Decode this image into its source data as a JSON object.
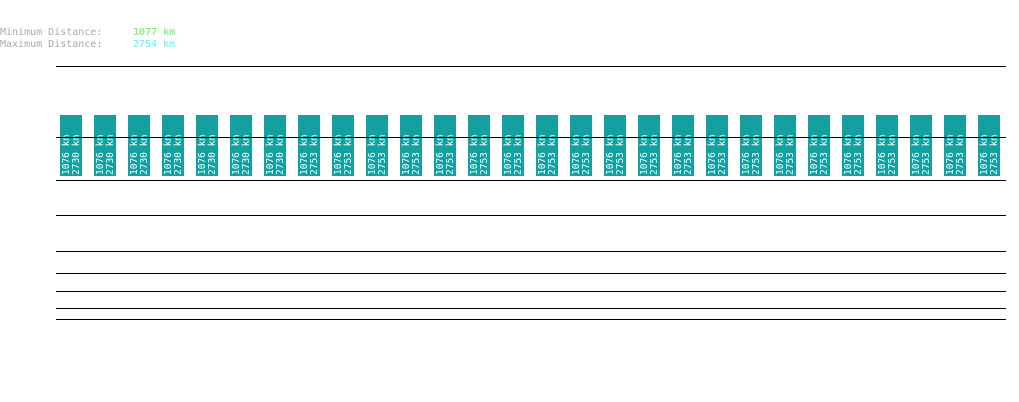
{
  "header": {
    "min_label": "Minimum Distance:",
    "min_value": "1077 km",
    "max_label": "Maximum Distance:",
    "max_value": "2754 km"
  },
  "segments": [
    {
      "min": "1076 km",
      "max": "2730 km"
    },
    {
      "min": "1076 km",
      "max": "2730 km"
    },
    {
      "min": "1076 km",
      "max": "2730 km"
    },
    {
      "min": "1076 km",
      "max": "2730 km"
    },
    {
      "min": "1076 km",
      "max": "2730 km"
    },
    {
      "min": "1076 km",
      "max": "2730 km"
    },
    {
      "min": "1076 km",
      "max": "2730 km"
    },
    {
      "min": "1076 km",
      "max": "2753 km"
    },
    {
      "min": "1076 km",
      "max": "2753 km"
    },
    {
      "min": "1076 km",
      "max": "2753 km"
    },
    {
      "min": "1076 km",
      "max": "2753 km"
    },
    {
      "min": "1076 km",
      "max": "2753 km"
    },
    {
      "min": "1076 km",
      "max": "2753 km"
    },
    {
      "min": "1076 km",
      "max": "2753 km"
    },
    {
      "min": "1076 km",
      "max": "2753 km"
    },
    {
      "min": "1076 km",
      "max": "2753 km"
    },
    {
      "min": "1076 km",
      "max": "2753 km"
    },
    {
      "min": "1076 km",
      "max": "2753 km"
    },
    {
      "min": "1076 km",
      "max": "2753 km"
    },
    {
      "min": "1076 km",
      "max": "2753 km"
    },
    {
      "min": "1076 km",
      "max": "2753 km"
    },
    {
      "min": "1076 km",
      "max": "2753 km"
    },
    {
      "min": "1076 km",
      "max": "2753 km"
    },
    {
      "min": "1076 km",
      "max": "2753 km"
    },
    {
      "min": "1076 km",
      "max": "2753 km"
    },
    {
      "min": "1076 km",
      "max": "2753 km"
    },
    {
      "min": "1076 km",
      "max": "2753 km"
    },
    {
      "min": "1076 km",
      "max": "2753 km"
    }
  ]
}
